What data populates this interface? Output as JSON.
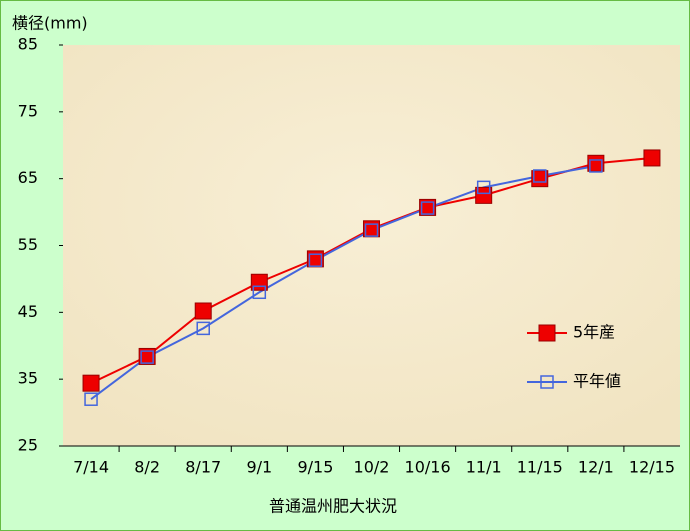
{
  "chart_data": {
    "type": "line",
    "y_label": "横径(mm)",
    "x_label": "普通温州肥大状況",
    "categories": [
      "7/14",
      "8/2",
      "8/17",
      "9/1",
      "9/15",
      "10/2",
      "10/16",
      "11/1",
      "11/15",
      "12/1",
      "12/15"
    ],
    "series": [
      {
        "name": "5年産",
        "color": "#ee0000",
        "marker": "filled-square",
        "values": [
          34.4,
          38.4,
          45.2,
          49.5,
          53,
          57.5,
          60.7,
          62.5,
          65,
          67.3,
          68.1
        ]
      },
      {
        "name": "平年値",
        "color": "#4466dd",
        "marker": "hollow-square",
        "values": [
          32,
          38.3,
          42.6,
          48,
          52.8,
          57.3,
          60.6,
          63.7,
          65.4,
          66.9,
          null
        ]
      }
    ],
    "ylim": [
      25,
      85
    ],
    "yticks": [
      25,
      35,
      45,
      55,
      65,
      75,
      85
    ],
    "grid": false,
    "legend": "right"
  }
}
